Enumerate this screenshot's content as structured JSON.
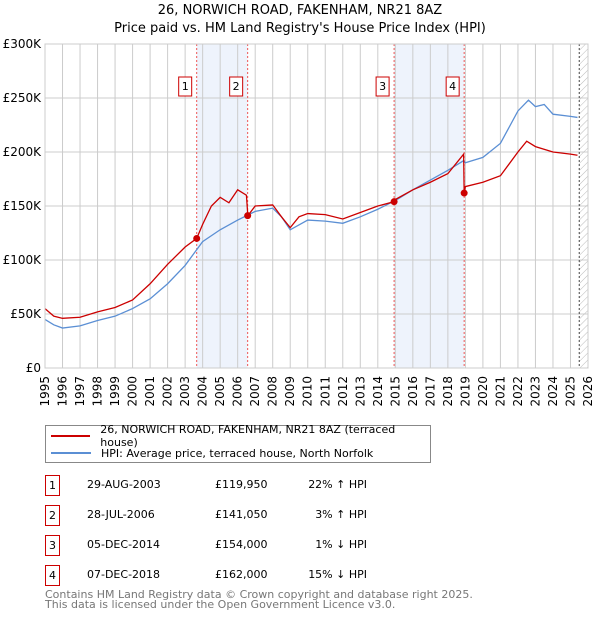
{
  "title": "26, NORWICH ROAD, FAKENHAM, NR21 8AZ",
  "subtitle": "Price paid vs. HM Land Registry's House Price Index (HPI)",
  "colors": {
    "price": "#cc0000",
    "hpi": "#5b8fd4",
    "band": "#eef3fc"
  },
  "chart_data": {
    "type": "line",
    "title": "Price paid vs. HM Land Registry's House Price Index (HPI)",
    "ylim": [
      0,
      300000
    ],
    "xlim": [
      1995,
      2026
    ],
    "yticks": [
      {
        "v": 0,
        "label": "£0"
      },
      {
        "v": 50000,
        "label": "£50K"
      },
      {
        "v": 100000,
        "label": "£100K"
      },
      {
        "v": 150000,
        "label": "£150K"
      },
      {
        "v": 200000,
        "label": "£200K"
      },
      {
        "v": 250000,
        "label": "£250K"
      },
      {
        "v": 300000,
        "label": "£300K"
      }
    ],
    "xticks": [
      "1995",
      "1996",
      "1997",
      "1998",
      "1999",
      "2000",
      "2001",
      "2002",
      "2003",
      "2004",
      "2005",
      "2006",
      "2007",
      "2008",
      "2009",
      "2010",
      "2011",
      "2012",
      "2013",
      "2014",
      "2015",
      "2016",
      "2017",
      "2018",
      "2019",
      "2020",
      "2021",
      "2022",
      "2023",
      "2024",
      "2025",
      "2026"
    ],
    "series": [
      {
        "name": "26, NORWICH ROAD, FAKENHAM, NR21 8AZ (terraced house)",
        "color": "#cc0000",
        "x": [
          1995,
          1995.5,
          1996,
          1997,
          1998,
          1999,
          2000,
          2001,
          2002,
          2003,
          2003.66,
          2004,
          2004.5,
          2005,
          2005.5,
          2006,
          2006.5,
          2006.58,
          2007,
          2008,
          2008.5,
          2009,
          2009.5,
          2010,
          2011,
          2012,
          2013,
          2014,
          2014.93,
          2015,
          2016,
          2017,
          2018,
          2018.9,
          2018.93,
          2019,
          2020,
          2021,
          2022,
          2022.5,
          2023,
          2024,
          2025,
          2025.4
        ],
        "y": [
          55000,
          48000,
          46000,
          47000,
          52000,
          56000,
          63000,
          78000,
          96000,
          112000,
          119950,
          133000,
          150000,
          158000,
          153000,
          165000,
          160000,
          141050,
          150000,
          151000,
          140000,
          130000,
          140000,
          143000,
          142000,
          138000,
          144000,
          150000,
          154000,
          156000,
          165000,
          172000,
          180000,
          198000,
          162000,
          168000,
          172000,
          178000,
          200000,
          210000,
          205000,
          200000,
          198000,
          197000
        ]
      },
      {
        "name": "HPI: Average price, terraced house, North Norfolk",
        "color": "#5b8fd4",
        "x": [
          1995,
          1995.5,
          1996,
          1997,
          1998,
          1999,
          2000,
          2001,
          2002,
          2003,
          2004,
          2005,
          2006,
          2007,
          2008,
          2008.5,
          2009,
          2010,
          2011,
          2012,
          2013,
          2014,
          2015,
          2016,
          2017,
          2018,
          2018.9,
          2019,
          2020,
          2021,
          2022,
          2022.6,
          2023,
          2023.5,
          2024,
          2025,
          2025.4
        ],
        "y": [
          45000,
          40000,
          37000,
          39000,
          44000,
          48000,
          55000,
          64000,
          78000,
          95000,
          117000,
          128000,
          137000,
          145000,
          148000,
          140000,
          128000,
          137000,
          136000,
          134000,
          140000,
          147000,
          155000,
          165000,
          174000,
          183000,
          192000,
          190000,
          195000,
          208000,
          238000,
          248000,
          242000,
          244000,
          235000,
          233000,
          232000
        ]
      }
    ],
    "sales": [
      {
        "n": "1",
        "x": 2003.66,
        "y": 119950,
        "date": "29-AUG-2003",
        "price": "£119,950",
        "hpi": "22% ↑ HPI"
      },
      {
        "n": "2",
        "x": 2006.57,
        "y": 141050,
        "date": "28-JUL-2006",
        "price": "£141,050",
        "hpi": "3% ↑ HPI"
      },
      {
        "n": "3",
        "x": 2014.93,
        "y": 154000,
        "date": "05-DEC-2014",
        "price": "£154,000",
        "hpi": "1% ↓ HPI"
      },
      {
        "n": "4",
        "x": 2018.93,
        "y": 162000,
        "date": "07-DEC-2018",
        "price": "£162,000",
        "hpi": "15% ↓ HPI"
      }
    ]
  },
  "legend": {
    "price": "26, NORWICH ROAD, FAKENHAM, NR21 8AZ (terraced house)",
    "hpi": "HPI: Average price, terraced house, North Norfolk"
  },
  "footer": {
    "line1": "Contains HM Land Registry data © Crown copyright and database right 2025.",
    "line2": "This data is licensed under the Open Government Licence v3.0."
  }
}
